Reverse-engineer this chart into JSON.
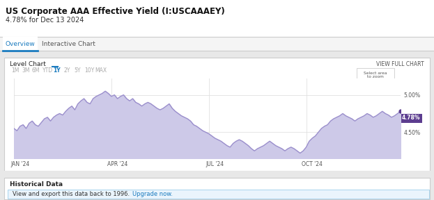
{
  "title": "US Corporate AAA Effective Yield (I:USCAAAEY)",
  "subtitle": "4.78% for Dec 13 2024",
  "tab_overview": "Overview",
  "tab_interactive": "Interactive Chart",
  "chart_label": "Level Chart",
  "view_full": "VIEW FULL CHART",
  "select_zoom": "Select area\nto zoom",
  "time_tabs": [
    "1M",
    "3M",
    "6M",
    "YTD",
    "1Y",
    "2Y",
    "5Y",
    "10Y",
    "MAX"
  ],
  "active_tab": "1Y",
  "x_labels": [
    "JAN '24",
    "APR '24",
    "JUL '24",
    "OCT '24"
  ],
  "y_ticks": [
    4.5,
    5.0
  ],
  "ylim": [
    4.15,
    5.22
  ],
  "annotation_value": "4.78%",
  "annotation_color": "#5c3d8f",
  "line_color": "#9b8fcc",
  "fill_color": "#cdc9e8",
  "historical_data_text": "Historical Data",
  "upgrade_link_color": "#1a7bbf",
  "border_color": "#cccccc",
  "tab_border_color": "#1a7bbf",
  "y_data": [
    4.55,
    4.52,
    4.58,
    4.6,
    4.55,
    4.62,
    4.65,
    4.6,
    4.58,
    4.63,
    4.68,
    4.7,
    4.65,
    4.7,
    4.73,
    4.75,
    4.73,
    4.78,
    4.82,
    4.85,
    4.8,
    4.88,
    4.92,
    4.95,
    4.9,
    4.88,
    4.95,
    4.98,
    5.0,
    5.02,
    5.05,
    5.02,
    4.98,
    5.0,
    4.95,
    4.98,
    5.0,
    4.95,
    4.92,
    4.95,
    4.9,
    4.88,
    4.85,
    4.88,
    4.9,
    4.88,
    4.85,
    4.82,
    4.8,
    4.82,
    4.85,
    4.88,
    4.82,
    4.78,
    4.75,
    4.72,
    4.7,
    4.68,
    4.65,
    4.6,
    4.58,
    4.55,
    4.52,
    4.5,
    4.48,
    4.45,
    4.42,
    4.4,
    4.38,
    4.35,
    4.32,
    4.3,
    4.35,
    4.38,
    4.4,
    4.38,
    4.35,
    4.32,
    4.28,
    4.25,
    4.28,
    4.3,
    4.32,
    4.35,
    4.38,
    4.35,
    4.32,
    4.3,
    4.28,
    4.25,
    4.28,
    4.3,
    4.28,
    4.25,
    4.22,
    4.25,
    4.3,
    4.38,
    4.42,
    4.45,
    4.5,
    4.55,
    4.58,
    4.6,
    4.65,
    4.68,
    4.7,
    4.72,
    4.75,
    4.72,
    4.7,
    4.68,
    4.65,
    4.68,
    4.7,
    4.72,
    4.75,
    4.73,
    4.7,
    4.72,
    4.75,
    4.78,
    4.75,
    4.73,
    4.7,
    4.72,
    4.75,
    4.78
  ]
}
